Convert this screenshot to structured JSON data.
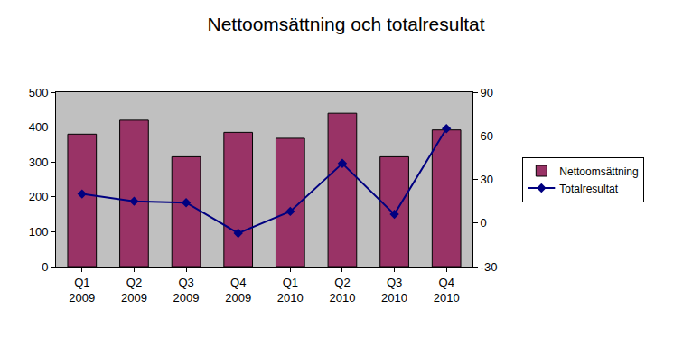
{
  "chart_data": {
    "type": "bar",
    "title": "Nettoomsättning och totalresultat",
    "categories": [
      "Q1 2009",
      "Q2 2009",
      "Q3 2009",
      "Q4 2009",
      "Q1 2010",
      "Q2 2010",
      "Q3 2010",
      "Q4 2010"
    ],
    "series": [
      {
        "name": "Nettoomsättning",
        "type": "bar",
        "color": "#993366",
        "values": [
          380,
          420,
          315,
          385,
          368,
          440,
          315,
          392
        ]
      },
      {
        "name": "Totalresultat",
        "type": "line",
        "axis": "y2",
        "color": "#000080",
        "marker": "diamond",
        "values": [
          20,
          15,
          14,
          -7,
          8,
          41,
          6,
          65
        ]
      }
    ],
    "ylim": [
      0,
      500
    ],
    "yticks": [
      0,
      100,
      200,
      300,
      400,
      500
    ],
    "y2lim": [
      -30,
      90
    ],
    "y2ticks": [
      -30,
      0,
      30,
      60,
      90
    ],
    "grid": false,
    "legend": "right"
  }
}
